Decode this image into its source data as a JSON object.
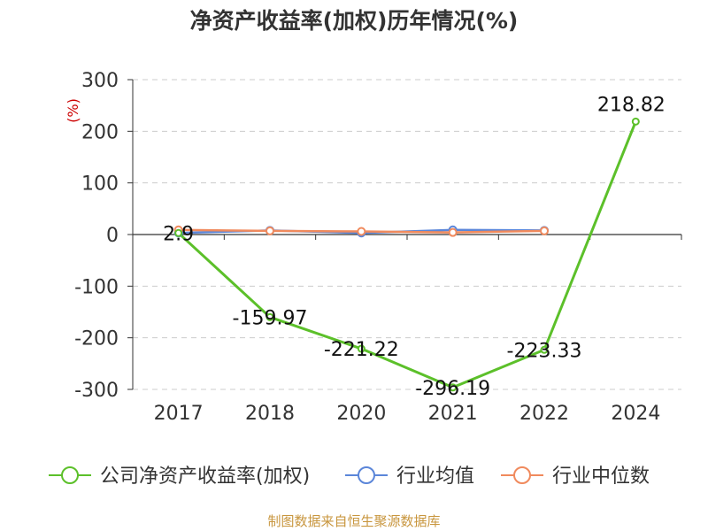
{
  "chart_data": {
    "type": "line",
    "title": "净资产收益率(加权)历年情况(%)",
    "ylabel": "(%)",
    "xlabel": "",
    "categories": [
      "2017",
      "2018",
      "2020",
      "2021",
      "2022",
      "2024"
    ],
    "y_ticks": [
      300,
      200,
      100,
      0,
      -100,
      -200,
      -300
    ],
    "ylim": [
      -300,
      300
    ],
    "grid": true,
    "legend_position": "bottom",
    "series": [
      {
        "name": "公司净资产收益率(加权)",
        "color": "#5cc02a",
        "values": [
          2.9,
          -159.97,
          -221.22,
          -296.19,
          -223.33,
          218.82
        ],
        "labels": [
          "2.9",
          "-159.97",
          "-221.22",
          "-296.19",
          "-223.33",
          "218.82"
        ]
      },
      {
        "name": "行业均值",
        "color": "#5b86d9",
        "values": [
          3,
          8,
          3,
          9,
          8,
          null
        ]
      },
      {
        "name": "行业中位数",
        "color": "#f08a5d",
        "values": [
          9,
          7,
          6,
          4,
          7,
          null
        ]
      }
    ],
    "source": "制图数据来自恒生聚源数据库"
  }
}
